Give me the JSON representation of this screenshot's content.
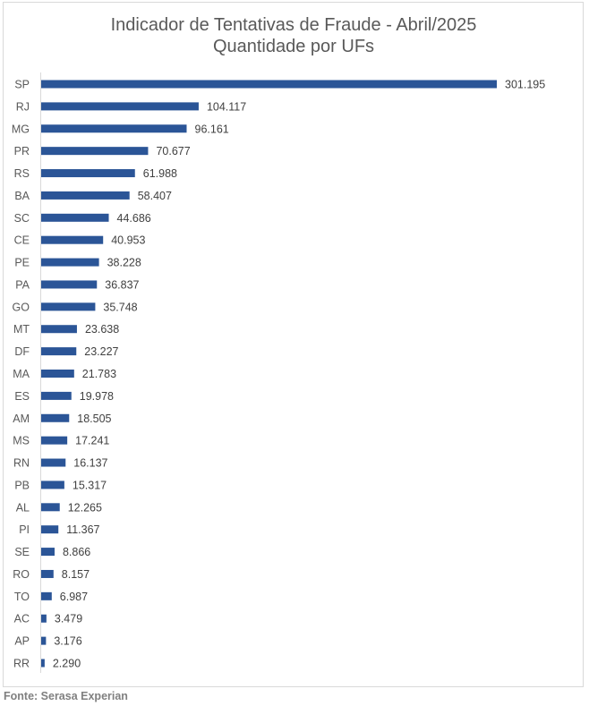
{
  "chart_data": {
    "type": "bar",
    "orientation": "horizontal",
    "title": "Indicador de Tentativas de Fraude - Abril/2025",
    "subtitle": "Quantidade por UFs",
    "categories": [
      "SP",
      "RJ",
      "MG",
      "PR",
      "RS",
      "BA",
      "SC",
      "CE",
      "PE",
      "PA",
      "GO",
      "MT",
      "DF",
      "MA",
      "ES",
      "AM",
      "MS",
      "RN",
      "PB",
      "AL",
      "PI",
      "SE",
      "RO",
      "TO",
      "AC",
      "AP",
      "RR"
    ],
    "values": [
      301195,
      104117,
      96161,
      70677,
      61988,
      58407,
      44686,
      40953,
      38228,
      36837,
      35748,
      23638,
      23227,
      21783,
      19978,
      18505,
      17241,
      16137,
      15317,
      12265,
      11367,
      8866,
      8157,
      6987,
      3479,
      3176,
      2290
    ],
    "data_labels": [
      "301.195",
      "104.117",
      "96.161",
      "70.677",
      "61.988",
      "58.407",
      "44.686",
      "40.953",
      "38.228",
      "36.837",
      "35.748",
      "23.638",
      "23.227",
      "21.783",
      "19.978",
      "18.505",
      "17.241",
      "16.137",
      "15.317",
      "12.265",
      "11.367",
      "8.866",
      "8.157",
      "6.987",
      "3.479",
      "3.176",
      "2.290"
    ],
    "xlim": [
      0,
      301195
    ],
    "grid": false,
    "legend": "none",
    "bar_color": "#2b5597"
  },
  "source": "Fonte: Serasa Experian"
}
